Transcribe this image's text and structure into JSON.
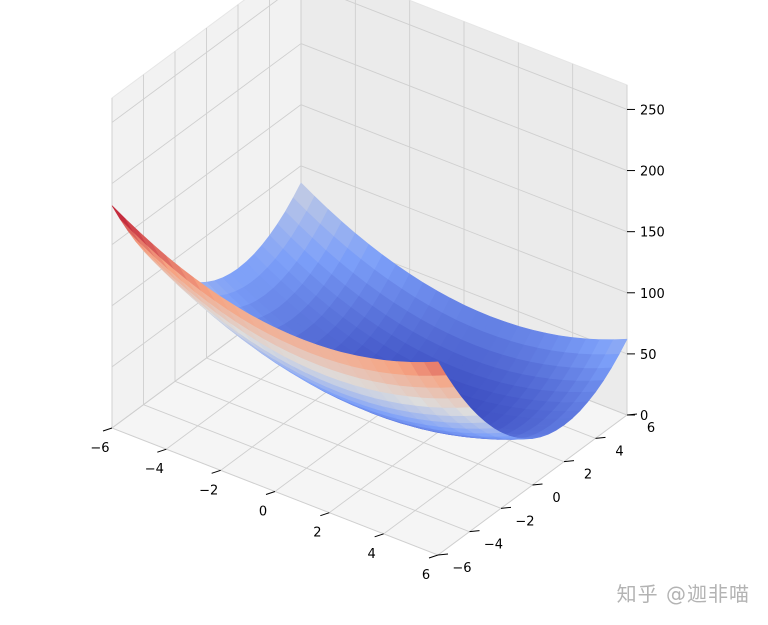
{
  "chart_data": {
    "type": "surface3d",
    "title": "",
    "xlabel": "",
    "ylabel": "",
    "zlabel": "",
    "colormap": "coolwarm",
    "function": "z = (x - 1)^2 + 2*(y - 2)^2 + 5 (fitted estimate)",
    "x_range": [
      -6,
      6
    ],
    "y_range": [
      -6,
      6
    ],
    "z_range": [
      0,
      270
    ],
    "x_ticks": [
      "−6",
      "−4",
      "−2",
      "0",
      "2",
      "4",
      "6"
    ],
    "y_ticks": [
      "−6",
      "−4",
      "−2",
      "0",
      "2",
      "4",
      "6"
    ],
    "z_ticks": [
      "0",
      "50",
      "100",
      "150",
      "200",
      "250"
    ],
    "x_tick_values": [
      -6,
      -4,
      -2,
      0,
      2,
      4,
      6
    ],
    "y_tick_values": [
      -6,
      -4,
      -2,
      0,
      2,
      4,
      6
    ],
    "z_tick_values": [
      0,
      50,
      100,
      150,
      200,
      250
    ],
    "corner_values": [
      {
        "x": -6,
        "y": -6,
        "z": 177
      },
      {
        "x": 6,
        "y": -6,
        "z": 153
      },
      {
        "x": -6,
        "y": 6,
        "z": 81
      },
      {
        "x": 6,
        "y": 6,
        "z": 57
      }
    ],
    "min_point": {
      "x": 1,
      "y": 2,
      "z": 5
    },
    "grid": true
  },
  "watermark": "知乎 @迦非喵"
}
